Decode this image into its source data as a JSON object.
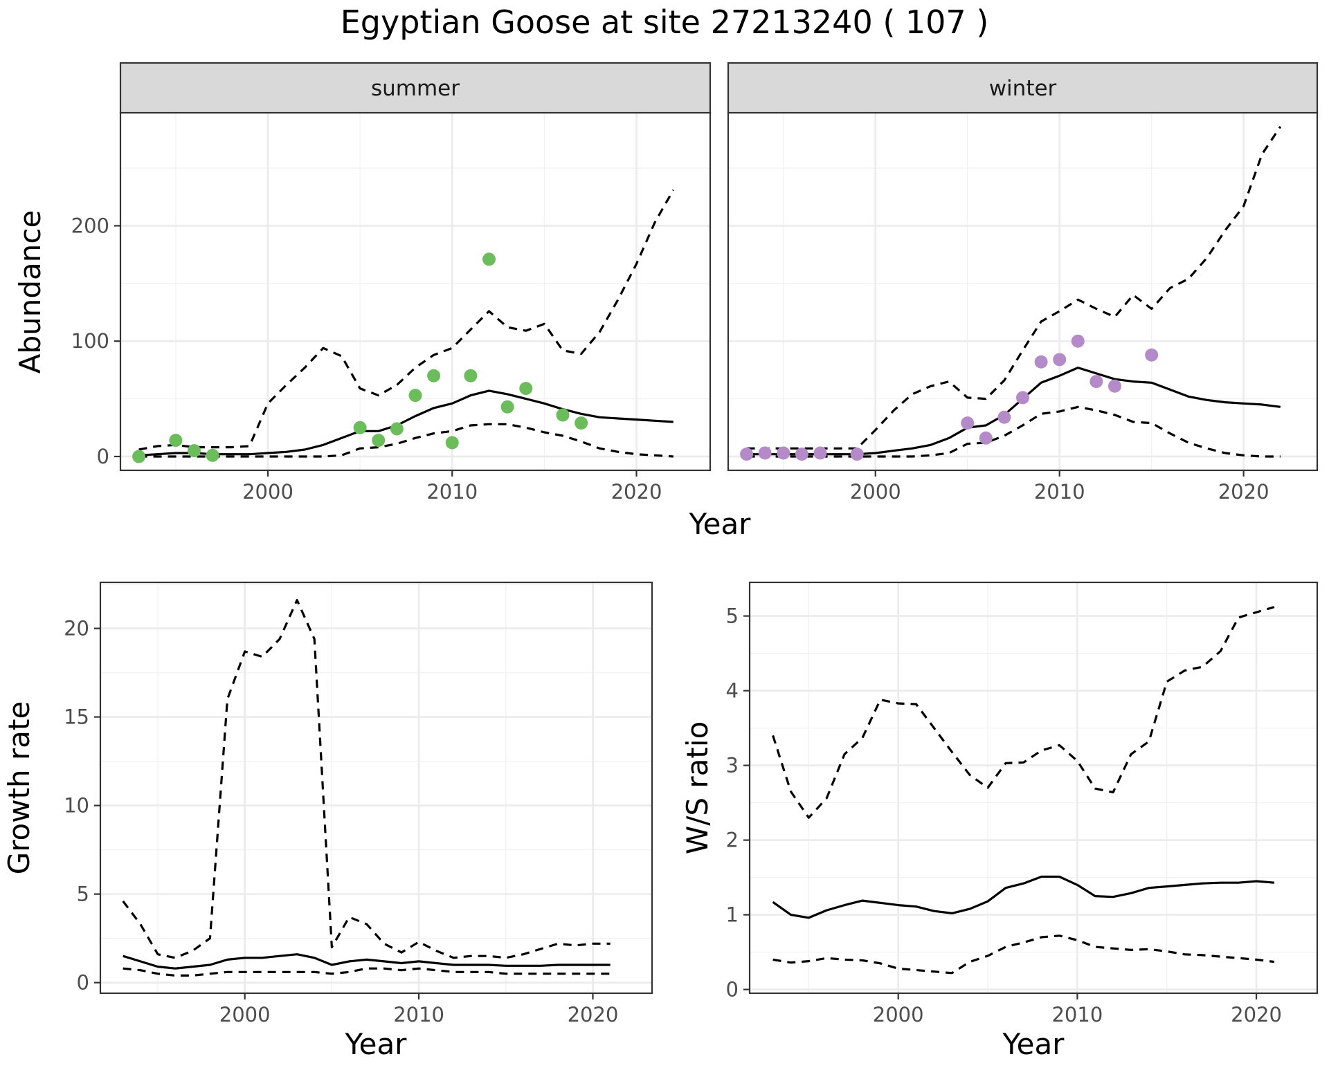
{
  "title": "Egyptian Goose at site 27213240 ( 107 )",
  "colors": {
    "summer_points": "#6bbd5b",
    "winter_points": "#b48ac8",
    "lines": "#000000"
  },
  "chart_data": [
    {
      "id": "summer",
      "type": "line",
      "facet_label": "summer",
      "ylabel": "Abundance",
      "xlabel": "",
      "xlim": [
        1992,
        2024
      ],
      "ylim": [
        -12,
        298
      ],
      "x_ticks": [
        2000,
        2010,
        2020
      ],
      "y_ticks": [
        0,
        100,
        200
      ],
      "grid": true,
      "years": [
        1993,
        1994,
        1995,
        1996,
        1997,
        1998,
        1999,
        2000,
        2001,
        2002,
        2003,
        2004,
        2005,
        2006,
        2007,
        2008,
        2009,
        2010,
        2011,
        2012,
        2013,
        2014,
        2015,
        2016,
        2017,
        2018,
        2019,
        2020,
        2021,
        2022
      ],
      "series": [
        {
          "role": "estimate",
          "style": "solid",
          "values": [
            1,
            2,
            3,
            3,
            2,
            2,
            2,
            3,
            4,
            6,
            10,
            16,
            22,
            22,
            27,
            35,
            42,
            46,
            53,
            57,
            54,
            50,
            46,
            41,
            37,
            34,
            33,
            32,
            31,
            30
          ]
        },
        {
          "role": "upper",
          "style": "dashed",
          "values": [
            6,
            9,
            10,
            8,
            8,
            8,
            9,
            46,
            62,
            77,
            94,
            87,
            59,
            53,
            62,
            77,
            88,
            94,
            110,
            126,
            112,
            109,
            115,
            92,
            89,
            108,
            136,
            167,
            203,
            231
          ]
        },
        {
          "role": "lower",
          "style": "dashed",
          "values": [
            0,
            0,
            0,
            0,
            0,
            0,
            0,
            0,
            0,
            0,
            0,
            1,
            7,
            8,
            11,
            16,
            20,
            22,
            27,
            28,
            28,
            25,
            21,
            18,
            13,
            7,
            4,
            2,
            1,
            0
          ]
        }
      ],
      "points": [
        {
          "x": 1993,
          "y": 0
        },
        {
          "x": 1995,
          "y": 14
        },
        {
          "x": 1996,
          "y": 5
        },
        {
          "x": 1997,
          "y": 1
        },
        {
          "x": 2005,
          "y": 25
        },
        {
          "x": 2006,
          "y": 14
        },
        {
          "x": 2007,
          "y": 24
        },
        {
          "x": 2008,
          "y": 53
        },
        {
          "x": 2009,
          "y": 70
        },
        {
          "x": 2010,
          "y": 12
        },
        {
          "x": 2011,
          "y": 70
        },
        {
          "x": 2012,
          "y": 171
        },
        {
          "x": 2013,
          "y": 43
        },
        {
          "x": 2014,
          "y": 59
        },
        {
          "x": 2016,
          "y": 36
        },
        {
          "x": 2017,
          "y": 29
        }
      ],
      "point_color": "#6bbd5b"
    },
    {
      "id": "winter",
      "type": "line",
      "facet_label": "winter",
      "ylabel": "",
      "xlabel": "",
      "xlim": [
        1992,
        2024
      ],
      "ylim": [
        -12,
        298
      ],
      "x_ticks": [
        2000,
        2010,
        2020
      ],
      "y_ticks": [],
      "grid": true,
      "years": [
        1993,
        1994,
        1995,
        1996,
        1997,
        1998,
        1999,
        2000,
        2001,
        2002,
        2003,
        2004,
        2005,
        2006,
        2007,
        2008,
        2009,
        2010,
        2011,
        2012,
        2013,
        2014,
        2015,
        2016,
        2017,
        2018,
        2019,
        2020,
        2021,
        2022
      ],
      "series": [
        {
          "role": "estimate",
          "style": "solid",
          "values": [
            2,
            2,
            2,
            2,
            2,
            2,
            2,
            3,
            5,
            7,
            10,
            16,
            25,
            27,
            36,
            50,
            64,
            70,
            77,
            72,
            67,
            65,
            64,
            58,
            52,
            49,
            47,
            46,
            45,
            43
          ]
        },
        {
          "role": "upper",
          "style": "dashed",
          "values": [
            7,
            7,
            7,
            7,
            7,
            7,
            7,
            23,
            40,
            54,
            61,
            65,
            51,
            50,
            66,
            92,
            117,
            126,
            136,
            128,
            121,
            140,
            128,
            146,
            154,
            172,
            196,
            217,
            262,
            286
          ]
        },
        {
          "role": "lower",
          "style": "dashed",
          "values": [
            0,
            0,
            0,
            0,
            0,
            0,
            0,
            0,
            0,
            0,
            1,
            3,
            11,
            12,
            18,
            27,
            37,
            39,
            43,
            40,
            36,
            30,
            29,
            20,
            12,
            7,
            3,
            1,
            0,
            0
          ]
        }
      ],
      "points": [
        {
          "x": 1993,
          "y": 2
        },
        {
          "x": 1994,
          "y": 3
        },
        {
          "x": 1995,
          "y": 3
        },
        {
          "x": 1996,
          "y": 2
        },
        {
          "x": 1997,
          "y": 3
        },
        {
          "x": 1999,
          "y": 2
        },
        {
          "x": 2005,
          "y": 29
        },
        {
          "x": 2006,
          "y": 16
        },
        {
          "x": 2007,
          "y": 34
        },
        {
          "x": 2008,
          "y": 51
        },
        {
          "x": 2009,
          "y": 82
        },
        {
          "x": 2010,
          "y": 84
        },
        {
          "x": 2011,
          "y": 100
        },
        {
          "x": 2012,
          "y": 65
        },
        {
          "x": 2013,
          "y": 61
        },
        {
          "x": 2015,
          "y": 88
        }
      ],
      "point_color": "#b48ac8"
    },
    {
      "id": "growth",
      "type": "line",
      "ylabel": "Growth rate",
      "xlabel": "Year",
      "xlim": [
        1991.7,
        2023.4
      ],
      "ylim": [
        -0.6,
        22.6
      ],
      "x_ticks": [
        2000,
        2010,
        2020
      ],
      "y_ticks": [
        0,
        5,
        10,
        15,
        20
      ],
      "grid": true,
      "years": [
        1993,
        1994,
        1995,
        1996,
        1997,
        1998,
        1999,
        2000,
        2001,
        2002,
        2003,
        2004,
        2005,
        2006,
        2007,
        2008,
        2009,
        2010,
        2011,
        2012,
        2013,
        2014,
        2015,
        2016,
        2017,
        2018,
        2019,
        2020,
        2021
      ],
      "series": [
        {
          "role": "estimate",
          "style": "solid",
          "values": [
            1.5,
            1.2,
            0.9,
            0.8,
            0.9,
            1.0,
            1.3,
            1.4,
            1.4,
            1.5,
            1.6,
            1.4,
            1.0,
            1.2,
            1.3,
            1.2,
            1.1,
            1.2,
            1.1,
            1.0,
            1.0,
            1.0,
            0.95,
            0.95,
            0.95,
            1.0,
            1.0,
            1.0,
            1.0
          ]
        },
        {
          "role": "upper",
          "style": "dashed",
          "values": [
            4.6,
            3.3,
            1.6,
            1.4,
            1.8,
            2.5,
            16.0,
            18.7,
            18.4,
            19.4,
            21.6,
            19.4,
            2.0,
            3.7,
            3.3,
            2.2,
            1.7,
            2.3,
            1.8,
            1.4,
            1.5,
            1.5,
            1.4,
            1.6,
            1.9,
            2.2,
            2.1,
            2.2,
            2.2
          ]
        },
        {
          "role": "lower",
          "style": "dashed",
          "values": [
            0.8,
            0.7,
            0.5,
            0.4,
            0.4,
            0.5,
            0.6,
            0.6,
            0.6,
            0.6,
            0.6,
            0.6,
            0.5,
            0.6,
            0.8,
            0.8,
            0.7,
            0.8,
            0.7,
            0.6,
            0.6,
            0.6,
            0.5,
            0.5,
            0.5,
            0.5,
            0.5,
            0.5,
            0.5
          ]
        }
      ]
    },
    {
      "id": "ratio",
      "type": "line",
      "ylabel": "W/S ratio",
      "xlabel": "Year",
      "xlim": [
        1991.7,
        2023.4
      ],
      "ylim": [
        -0.05,
        5.45
      ],
      "x_ticks": [
        2000,
        2010,
        2020
      ],
      "y_ticks": [
        0,
        1,
        2,
        3,
        4,
        5
      ],
      "grid": true,
      "years": [
        1993,
        1994,
        1995,
        1996,
        1997,
        1998,
        1999,
        2000,
        2001,
        2002,
        2003,
        2004,
        2005,
        2006,
        2007,
        2008,
        2009,
        2010,
        2011,
        2012,
        2013,
        2014,
        2015,
        2016,
        2017,
        2018,
        2019,
        2020,
        2021
      ],
      "series": [
        {
          "role": "estimate",
          "style": "solid",
          "values": [
            1.17,
            1.0,
            0.96,
            1.06,
            1.13,
            1.19,
            1.16,
            1.13,
            1.11,
            1.05,
            1.02,
            1.08,
            1.18,
            1.36,
            1.42,
            1.51,
            1.51,
            1.4,
            1.25,
            1.24,
            1.29,
            1.36,
            1.38,
            1.4,
            1.42,
            1.43,
            1.43,
            1.45,
            1.43
          ]
        },
        {
          "role": "upper",
          "style": "dashed",
          "values": [
            3.4,
            2.65,
            2.3,
            2.56,
            3.15,
            3.37,
            3.88,
            3.83,
            3.82,
            3.5,
            3.18,
            2.87,
            2.7,
            3.03,
            3.04,
            3.2,
            3.27,
            3.06,
            2.69,
            2.64,
            3.15,
            3.32,
            4.12,
            4.27,
            4.32,
            4.53,
            4.98,
            5.05,
            5.12
          ]
        },
        {
          "role": "lower",
          "style": "dashed",
          "values": [
            0.4,
            0.36,
            0.38,
            0.42,
            0.4,
            0.39,
            0.35,
            0.28,
            0.26,
            0.24,
            0.22,
            0.37,
            0.45,
            0.57,
            0.63,
            0.7,
            0.72,
            0.66,
            0.57,
            0.55,
            0.53,
            0.54,
            0.51,
            0.47,
            0.46,
            0.44,
            0.42,
            0.4,
            0.37
          ]
        }
      ]
    }
  ]
}
